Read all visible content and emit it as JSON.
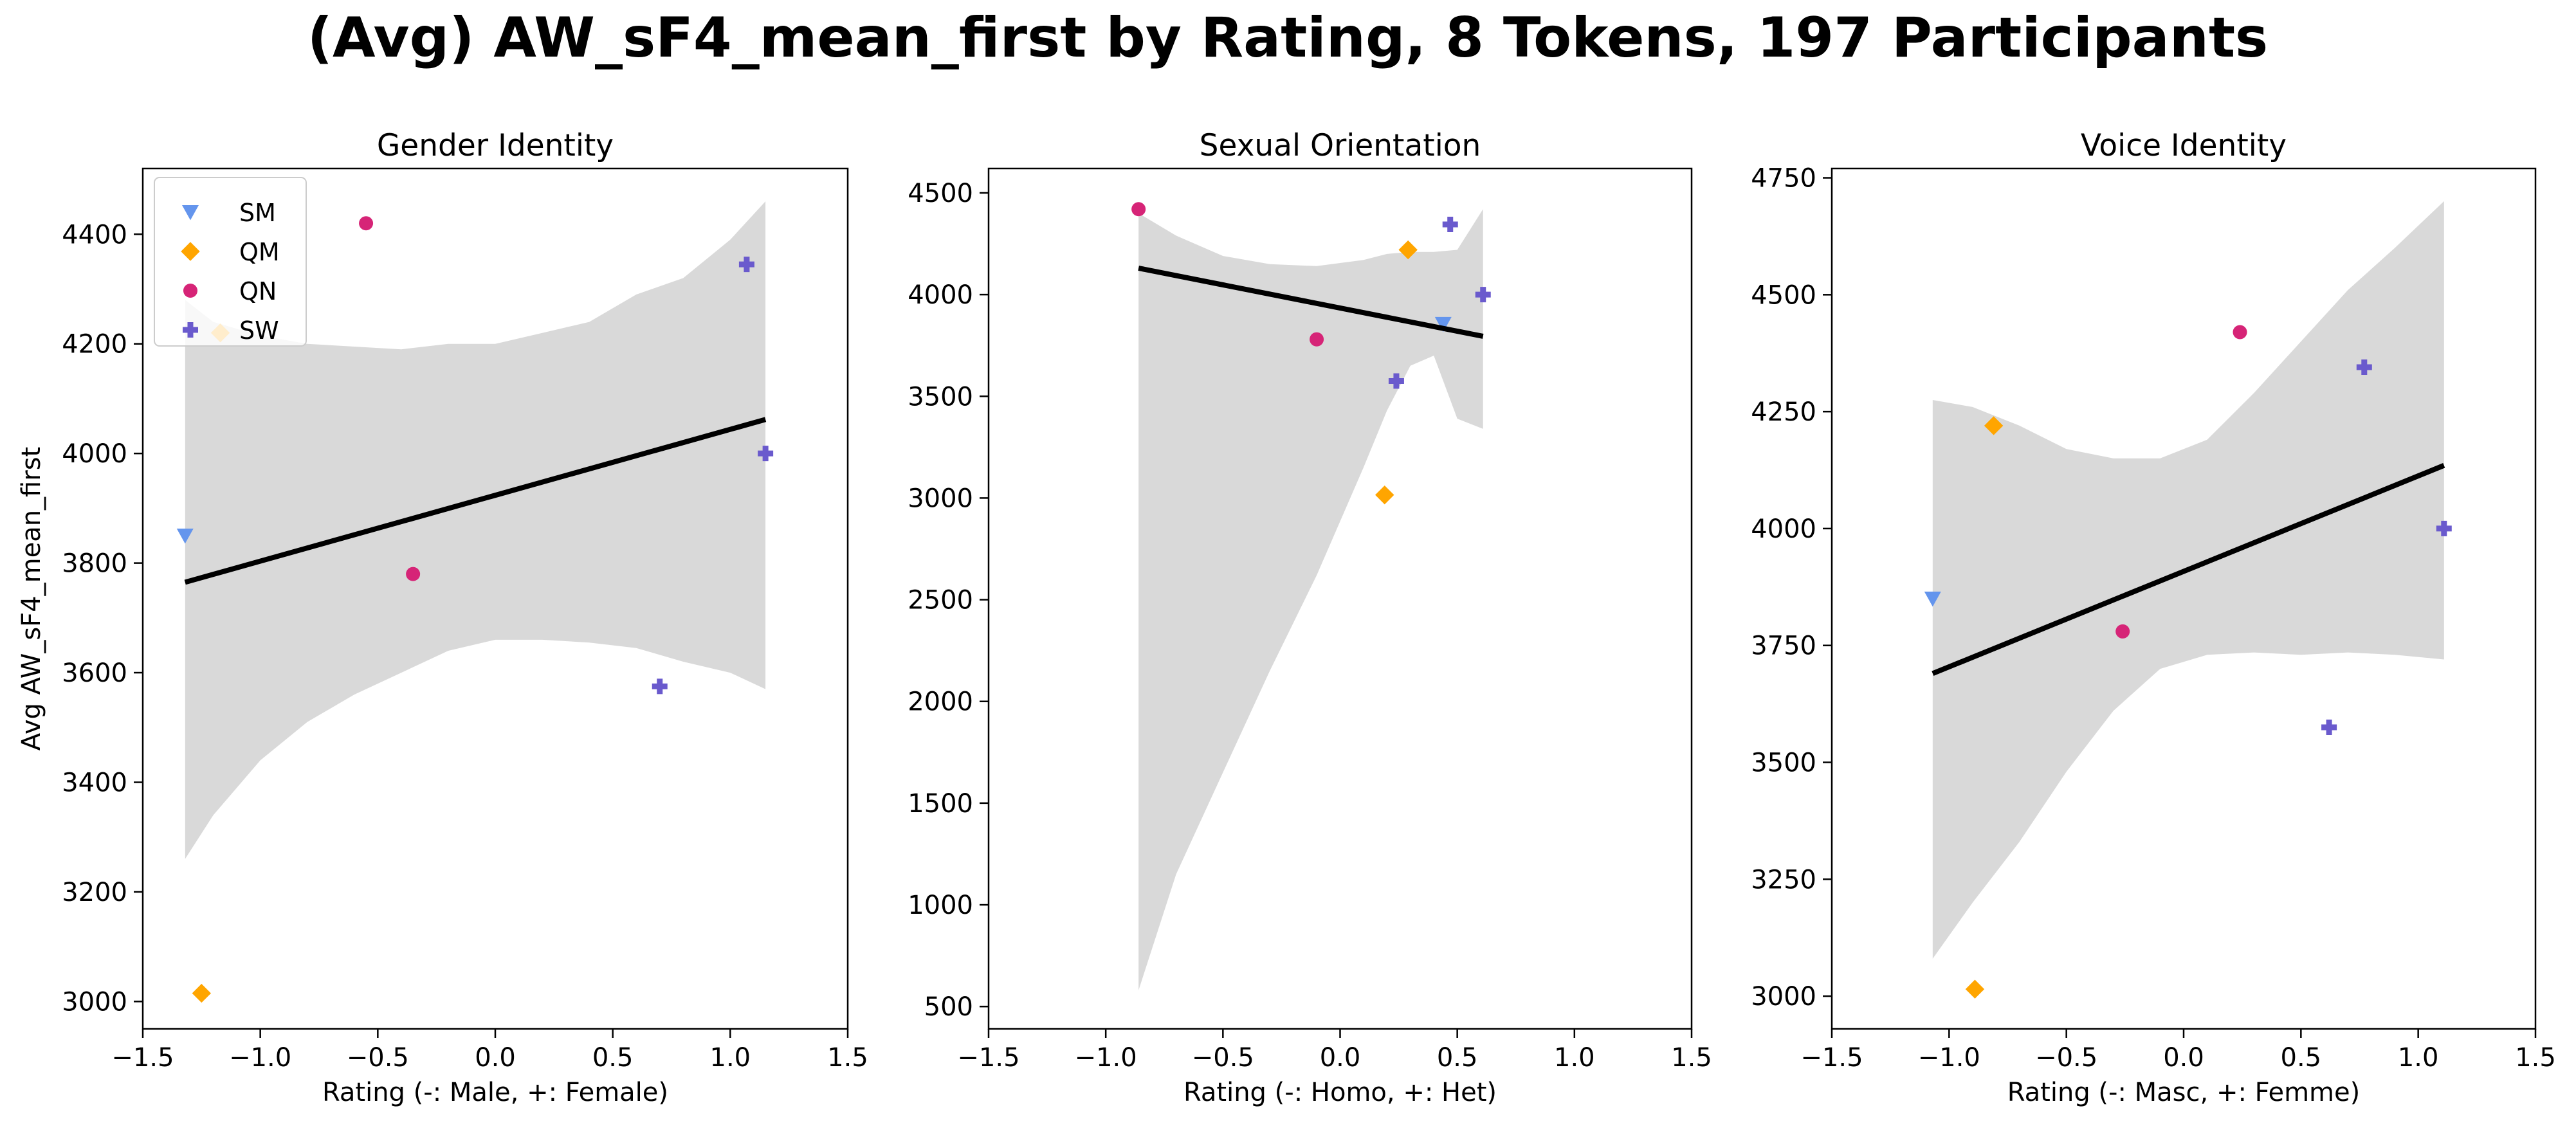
{
  "figure": {
    "title": "(Avg) AW_sF4_mean_first by Rating, 8 Tokens, 197 Participants"
  },
  "legend": {
    "placement": "upper-left of first panel",
    "entries": [
      {
        "label": "SM",
        "marker": "triangle-down",
        "color": "#6495ED"
      },
      {
        "label": "QM",
        "marker": "diamond",
        "color": "#FFA500"
      },
      {
        "label": "QN",
        "marker": "circle",
        "color": "#D62477"
      },
      {
        "label": "SW",
        "marker": "plus",
        "color": "#6A5ACD"
      }
    ]
  },
  "colors": {
    "SM": "#6495ED",
    "QM": "#FFA500",
    "QN": "#D62477",
    "SW": "#6A5ACD",
    "ci_band": "#D9D9D9",
    "regression_line": "#000000"
  },
  "chart_data": [
    {
      "type": "scatter",
      "title": "Gender Identity",
      "xlabel": "Rating (-: Male, +: Female)",
      "ylabel": "Avg AW_sF4_mean_first",
      "xlim": [
        -1.5,
        1.5
      ],
      "ylim": [
        2950,
        4520
      ],
      "xticks": [
        -1.5,
        -1.0,
        -0.5,
        0.0,
        0.5,
        1.0,
        1.5
      ],
      "xtick_labels": [
        "−1.5",
        "−1.0",
        "−0.5",
        "0.0",
        "0.5",
        "1.0",
        "1.5"
      ],
      "yticks": [
        3000,
        3200,
        3400,
        3600,
        3800,
        4000,
        4200,
        4400
      ],
      "ytick_labels": [
        "3000",
        "3200",
        "3400",
        "3600",
        "3800",
        "4000",
        "4200",
        "4400"
      ],
      "grid": false,
      "points": [
        {
          "group": "SM",
          "x": -1.32,
          "y": 3850
        },
        {
          "group": "QM",
          "x": -1.17,
          "y": 4220
        },
        {
          "group": "QM",
          "x": -1.25,
          "y": 3015
        },
        {
          "group": "QN",
          "x": -0.55,
          "y": 4420
        },
        {
          "group": "QN",
          "x": -0.35,
          "y": 3780
        },
        {
          "group": "SW",
          "x": 1.07,
          "y": 4345
        },
        {
          "group": "SW",
          "x": 1.15,
          "y": 4000
        },
        {
          "group": "SW",
          "x": 0.7,
          "y": 3575
        }
      ],
      "regression": {
        "x": [
          -1.32,
          1.15
        ],
        "y": [
          3765,
          4062
        ]
      },
      "ci_band": {
        "x": [
          -1.32,
          -1.2,
          -1.0,
          -0.8,
          -0.6,
          -0.4,
          -0.2,
          0.0,
          0.2,
          0.4,
          0.6,
          0.8,
          1.0,
          1.15
        ],
        "upper": [
          4280,
          4240,
          4215,
          4200,
          4195,
          4190,
          4200,
          4200,
          4220,
          4240,
          4290,
          4320,
          4390,
          4460
        ],
        "lower": [
          3260,
          3340,
          3440,
          3510,
          3560,
          3600,
          3640,
          3660,
          3660,
          3655,
          3645,
          3620,
          3600,
          3570
        ]
      }
    },
    {
      "type": "scatter",
      "title": "Sexual Orientation",
      "xlabel": "Rating (-: Homo, +: Het)",
      "ylabel": "",
      "xlim": [
        -1.5,
        1.5
      ],
      "ylim": [
        390,
        4620
      ],
      "xticks": [
        -1.5,
        -1.0,
        -0.5,
        0.0,
        0.5,
        1.0,
        1.5
      ],
      "xtick_labels": [
        "−1.5",
        "−1.0",
        "−0.5",
        "0.0",
        "0.5",
        "1.0",
        "1.5"
      ],
      "yticks": [
        500,
        1000,
        1500,
        2000,
        2500,
        3000,
        3500,
        4000,
        4500
      ],
      "ytick_labels": [
        "500",
        "1000",
        "1500",
        "2000",
        "2500",
        "3000",
        "3500",
        "4000",
        "4500"
      ],
      "grid": false,
      "points": [
        {
          "group": "QN",
          "x": -0.86,
          "y": 4420
        },
        {
          "group": "QN",
          "x": -0.1,
          "y": 3780
        },
        {
          "group": "QM",
          "x": 0.29,
          "y": 4220
        },
        {
          "group": "QM",
          "x": 0.19,
          "y": 3015
        },
        {
          "group": "SM",
          "x": 0.44,
          "y": 3855
        },
        {
          "group": "SW",
          "x": 0.47,
          "y": 4345
        },
        {
          "group": "SW",
          "x": 0.61,
          "y": 4000
        },
        {
          "group": "SW",
          "x": 0.24,
          "y": 3575
        }
      ],
      "regression": {
        "x": [
          -0.86,
          0.61
        ],
        "y": [
          4130,
          3795
        ]
      },
      "ci_band": {
        "x": [
          -0.86,
          -0.7,
          -0.5,
          -0.3,
          -0.1,
          0.1,
          0.2,
          0.3,
          0.4,
          0.5,
          0.61
        ],
        "upper": [
          4400,
          4290,
          4190,
          4150,
          4140,
          4170,
          4200,
          4210,
          4210,
          4220,
          4420
        ],
        "lower": [
          580,
          1150,
          1650,
          2150,
          2620,
          3150,
          3430,
          3650,
          3700,
          3390,
          3340
        ]
      }
    },
    {
      "type": "scatter",
      "title": "Voice Identity",
      "xlabel": "Rating (-: Masc, +: Femme)",
      "ylabel": "",
      "xlim": [
        -1.5,
        1.5
      ],
      "ylim": [
        2930,
        4770
      ],
      "xticks": [
        -1.5,
        -1.0,
        -0.5,
        0.0,
        0.5,
        1.0,
        1.5
      ],
      "xtick_labels": [
        "−1.5",
        "−1.0",
        "−0.5",
        "0.0",
        "0.5",
        "1.0",
        "1.5"
      ],
      "yticks": [
        3000,
        3250,
        3500,
        3750,
        4000,
        4250,
        4500,
        4750
      ],
      "ytick_labels": [
        "3000",
        "3250",
        "3500",
        "3750",
        "4000",
        "4250",
        "4500",
        "4750"
      ],
      "grid": false,
      "points": [
        {
          "group": "SM",
          "x": -1.07,
          "y": 3850
        },
        {
          "group": "QM",
          "x": -0.81,
          "y": 4220
        },
        {
          "group": "QM",
          "x": -0.89,
          "y": 3015
        },
        {
          "group": "QN",
          "x": 0.24,
          "y": 4420
        },
        {
          "group": "QN",
          "x": -0.26,
          "y": 3780
        },
        {
          "group": "SW",
          "x": 0.77,
          "y": 4345
        },
        {
          "group": "SW",
          "x": 1.11,
          "y": 4000
        },
        {
          "group": "SW",
          "x": 0.62,
          "y": 3575
        }
      ],
      "regression": {
        "x": [
          -1.07,
          1.11
        ],
        "y": [
          3690,
          4135
        ]
      },
      "ci_band": {
        "x": [
          -1.07,
          -0.9,
          -0.7,
          -0.5,
          -0.3,
          -0.1,
          0.1,
          0.3,
          0.5,
          0.7,
          0.9,
          1.11
        ],
        "upper": [
          4275,
          4260,
          4220,
          4170,
          4150,
          4150,
          4190,
          4290,
          4400,
          4510,
          4600,
          4700
        ],
        "lower": [
          3080,
          3200,
          3330,
          3480,
          3610,
          3700,
          3730,
          3735,
          3730,
          3735,
          3730,
          3720
        ]
      }
    }
  ]
}
